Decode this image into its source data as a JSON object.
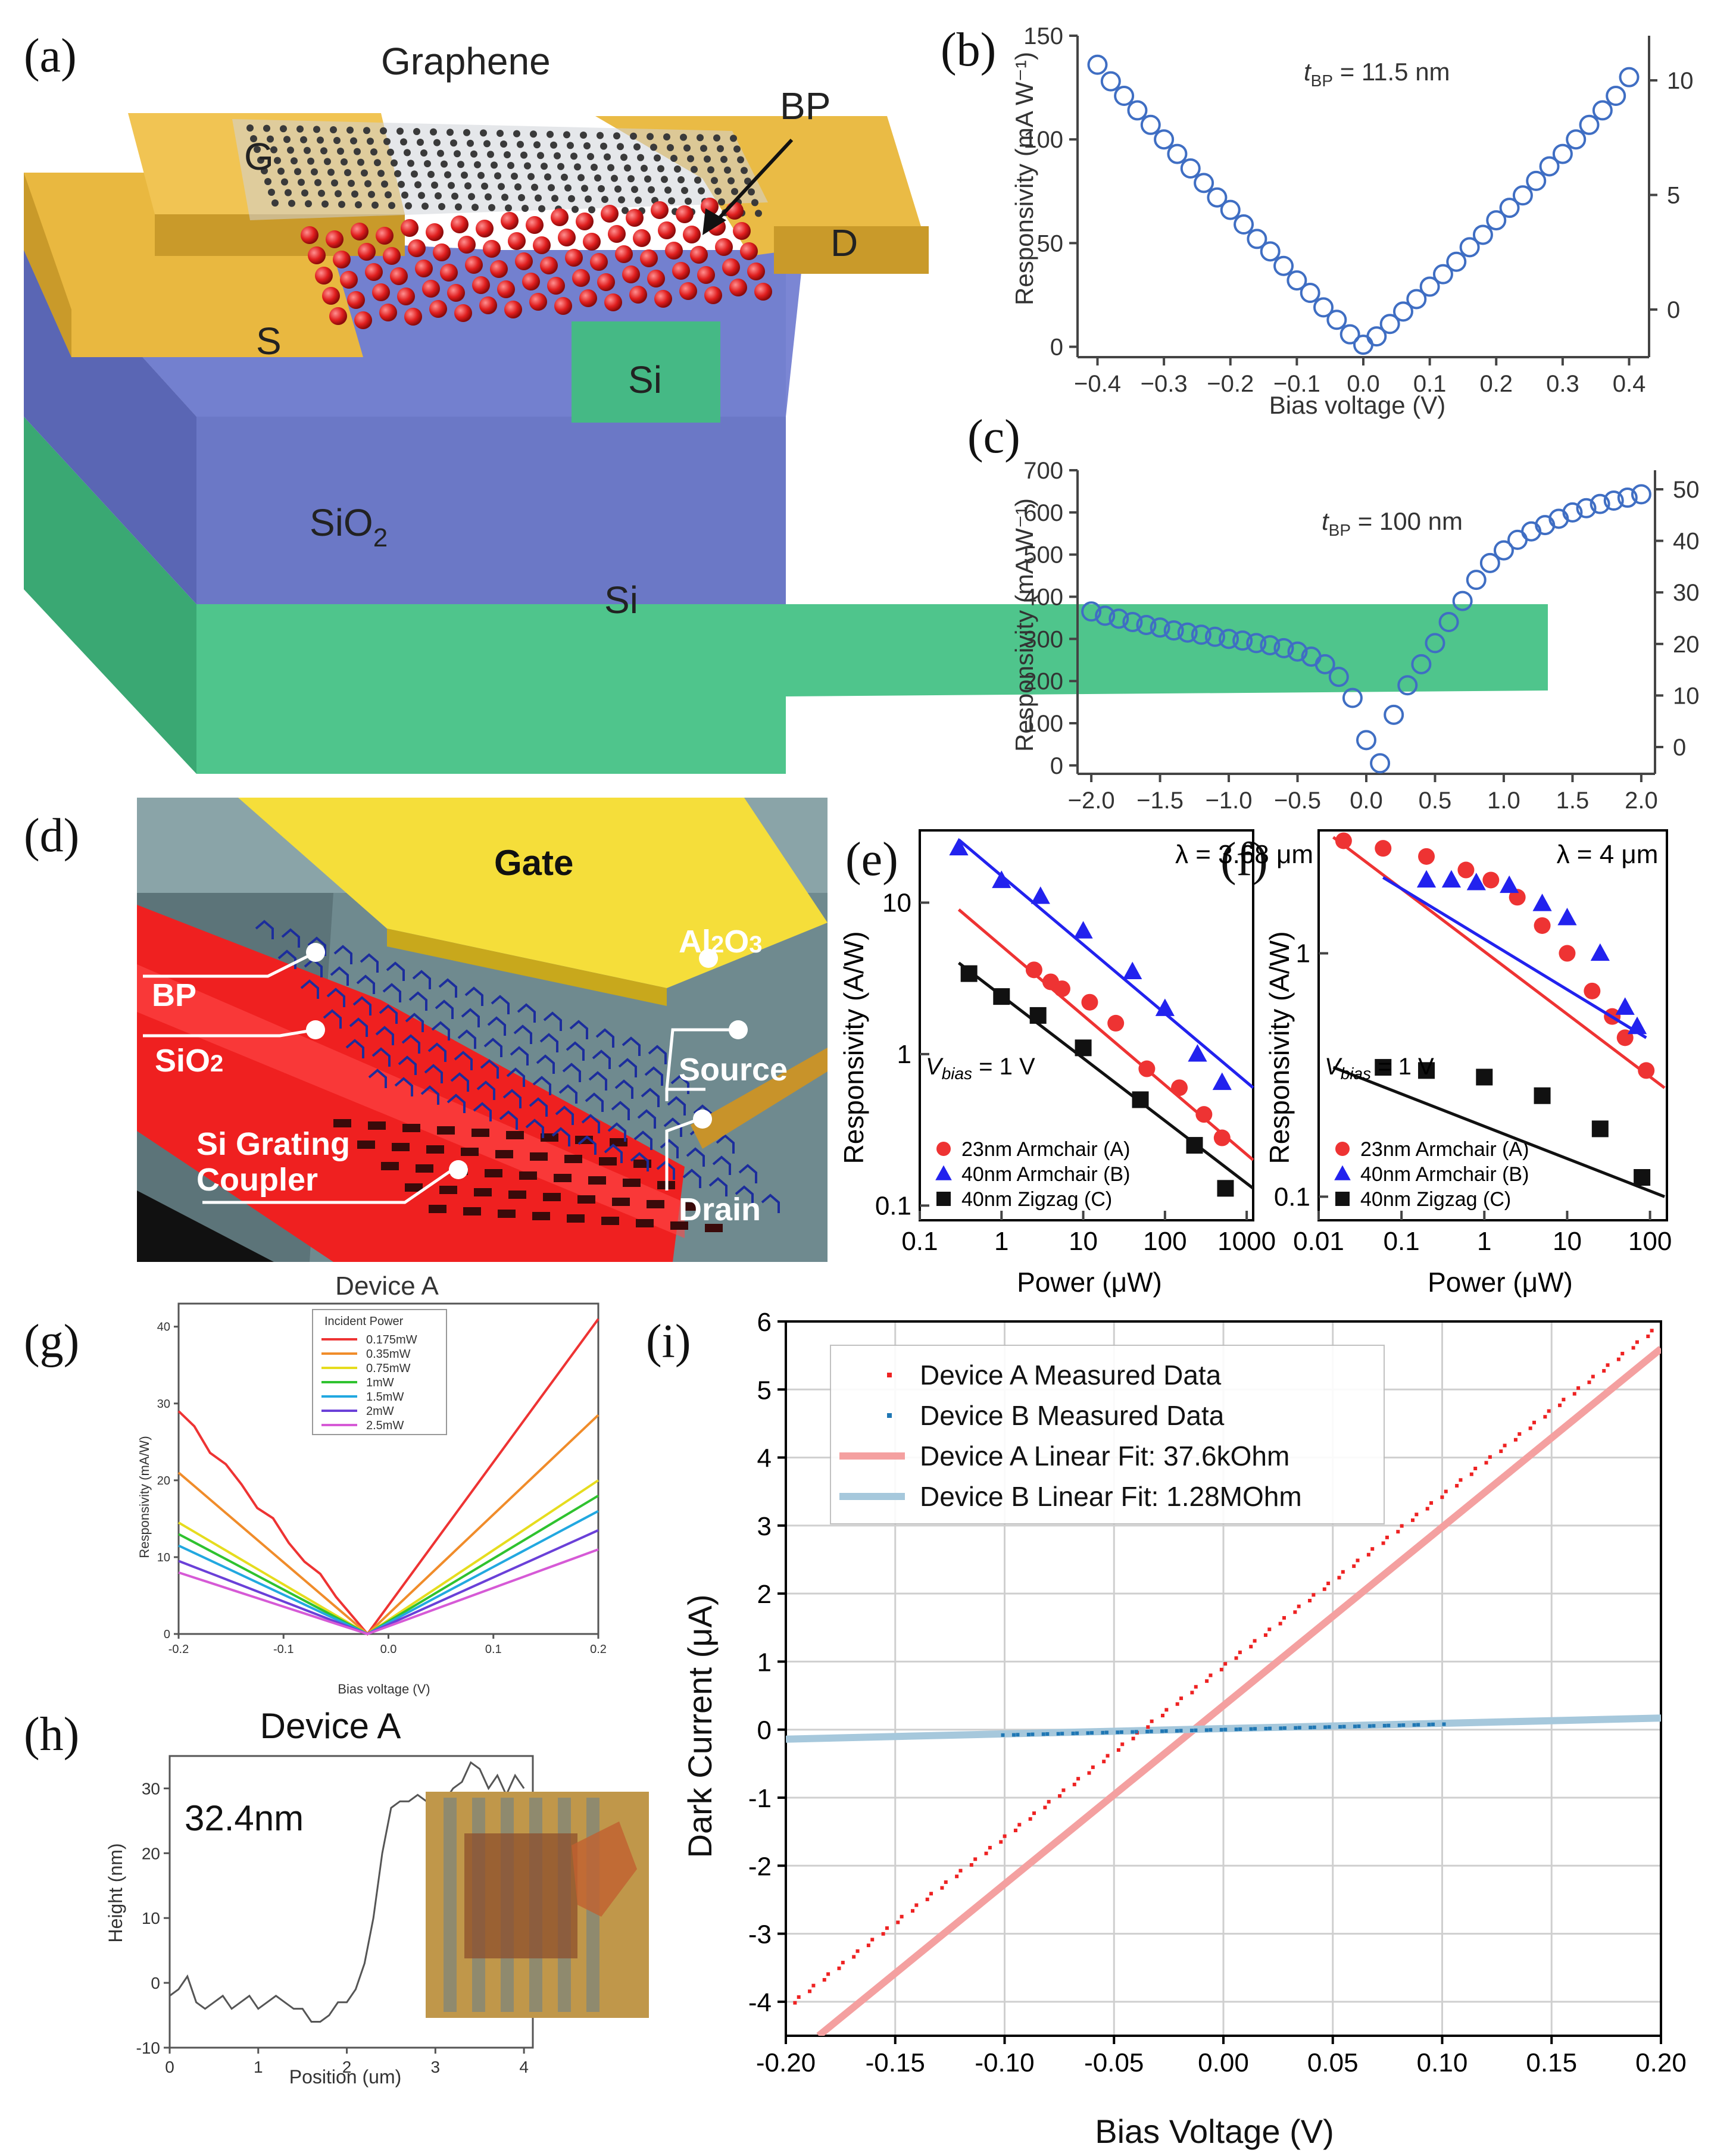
{
  "panel_labels": [
    "(a)",
    "(b)",
    "(c)",
    "(d)",
    "(e)",
    "(f)",
    "(g)",
    "(h)",
    "(i)"
  ],
  "diagram_a": {
    "graphene": "Graphene",
    "bp": "BP",
    "gate": "G",
    "source": "S",
    "drain": "D",
    "si_wg": "Si",
    "sio2": "SiO",
    "sio2_sub": "2",
    "si_sub": "Si"
  },
  "diagram_d": {
    "gate": "Gate",
    "al2o3": "Al",
    "al2o3_2": "2",
    "al2o3_o": "O",
    "al2o3_3": "3",
    "bp": "BP",
    "sio2": "SiO",
    "sio2_sub": "2",
    "source": "Source",
    "grating1": "Si Grating",
    "grating2": "Coupler",
    "drain": "Drain"
  },
  "colors": {
    "gold": "#e9b840",
    "blue_oxide": "#6b78c6",
    "green_si": "#4fc58c",
    "bp_red": "#e01e1e",
    "series_red": "#ee3333",
    "series_blue": "#2222ee",
    "series_black": "#111111",
    "circle_blue": "#3f6ec3"
  },
  "chart_data": [
    {
      "id": "b",
      "type": "scatter",
      "annotation": "t",
      "annotation_sub": "BP",
      "annotation_val": " = 11.5 nm",
      "xlabel": "Bias voltage (V)",
      "ylabel": "Responsivity (mA W⁻¹)",
      "xlim": [
        -0.43,
        0.43
      ],
      "ylim": [
        -5,
        150
      ],
      "xticks": [
        "−0.4",
        "−0.3",
        "−0.2",
        "−0.1",
        "0.0",
        "0.1",
        "0.2",
        "0.3",
        "0.4"
      ],
      "yticks": [
        "0",
        "50",
        "100",
        "150"
      ],
      "y2ticks": [
        "0",
        "5",
        "10"
      ],
      "x": [
        -0.4,
        -0.38,
        -0.36,
        -0.34,
        -0.32,
        -0.3,
        -0.28,
        -0.26,
        -0.24,
        -0.22,
        -0.2,
        -0.18,
        -0.16,
        -0.14,
        -0.12,
        -0.1,
        -0.08,
        -0.06,
        -0.04,
        -0.02,
        0.0,
        0.02,
        0.04,
        0.06,
        0.08,
        0.1,
        0.12,
        0.14,
        0.16,
        0.18,
        0.2,
        0.22,
        0.24,
        0.26,
        0.28,
        0.3,
        0.32,
        0.34,
        0.36,
        0.38,
        0.4
      ],
      "y": [
        136,
        128,
        121,
        114,
        107,
        100,
        93,
        86,
        79,
        72,
        66,
        59,
        52,
        46,
        39,
        32,
        26,
        19,
        13,
        6,
        1,
        5,
        11,
        17,
        23,
        29,
        35,
        41,
        48,
        54,
        61,
        67,
        73,
        80,
        87,
        93,
        100,
        107,
        114,
        121,
        130
      ]
    },
    {
      "id": "c",
      "type": "scatter",
      "annotation": "t",
      "annotation_sub": "BP",
      "annotation_val": " = 100 nm",
      "xlabel": "",
      "ylabel": "Responsivity (mA W⁻¹)",
      "xlim": [
        -2.1,
        2.1
      ],
      "ylim": [
        -20,
        700
      ],
      "xticks": [
        "−2.0",
        "−1.5",
        "−1.0",
        "−0.5",
        "0.0",
        "0.5",
        "1.0",
        "1.5",
        "2.0"
      ],
      "yticks": [
        "0",
        "100",
        "200",
        "300",
        "400",
        "500",
        "600",
        "700"
      ],
      "y2ticks": [
        "0",
        "10",
        "20",
        "30",
        "40",
        "50"
      ],
      "x": [
        -2.0,
        -1.9,
        -1.8,
        -1.7,
        -1.6,
        -1.5,
        -1.4,
        -1.3,
        -1.2,
        -1.1,
        -1.0,
        -0.9,
        -0.8,
        -0.7,
        -0.6,
        -0.5,
        -0.4,
        -0.3,
        -0.2,
        -0.1,
        0.0,
        0.1,
        0.2,
        0.3,
        0.4,
        0.5,
        0.6,
        0.7,
        0.8,
        0.9,
        1.0,
        1.1,
        1.2,
        1.3,
        1.4,
        1.5,
        1.6,
        1.7,
        1.8,
        1.9,
        2.0
      ],
      "y": [
        365,
        355,
        348,
        340,
        333,
        327,
        320,
        315,
        310,
        305,
        300,
        296,
        290,
        285,
        278,
        270,
        258,
        240,
        210,
        160,
        60,
        5,
        120,
        190,
        240,
        290,
        340,
        390,
        440,
        480,
        510,
        535,
        555,
        570,
        585,
        600,
        610,
        620,
        628,
        635,
        643
      ]
    },
    {
      "id": "e",
      "type": "scatter",
      "title": "λ = 3.68 μm",
      "xlabel": "Power (μW)",
      "ylabel": "Responsivity (A/W)",
      "xscale": "log",
      "yscale": "log",
      "xlim": [
        0.1,
        1200
      ],
      "ylim": [
        0.08,
        30
      ],
      "xticks": [
        "0.1",
        "1",
        "10",
        "100",
        "1000"
      ],
      "yticks": [
        "0.1",
        "1",
        "10"
      ],
      "bias_label": "V",
      "bias_sub": "bias",
      "bias_val": " = 1 V",
      "series": [
        {
          "name": "23nm Armchair (A)",
          "color": "#ee3333",
          "marker": "circle",
          "x": [
            2.5,
            4,
            5.5,
            12,
            25,
            60,
            150,
            300,
            500
          ],
          "y": [
            3.6,
            3.0,
            2.7,
            2.2,
            1.6,
            0.8,
            0.6,
            0.4,
            0.28
          ],
          "fit_x": [
            0.3,
            1200
          ],
          "fit_y": [
            9.0,
            0.2
          ]
        },
        {
          "name": "40nm Armchair (B)",
          "color": "#2222ee",
          "marker": "triangle",
          "x": [
            0.3,
            1,
            3,
            10,
            40,
            100,
            250,
            500
          ],
          "y": [
            23,
            14,
            11,
            6.5,
            3.5,
            2.0,
            1.0,
            0.65
          ],
          "fit_x": [
            0.3,
            1200
          ],
          "fit_y": [
            26,
            0.6
          ]
        },
        {
          "name": "40nm Zigzag (C)",
          "color": "#111111",
          "marker": "square",
          "x": [
            0.4,
            1,
            2.8,
            10,
            50,
            230,
            550
          ],
          "y": [
            3.4,
            2.4,
            1.8,
            1.1,
            0.5,
            0.25,
            0.13
          ],
          "fit_x": [
            0.3,
            1200
          ],
          "fit_y": [
            4.0,
            0.13
          ]
        }
      ]
    },
    {
      "id": "f",
      "type": "scatter",
      "title": "λ = 4 μm",
      "xlabel": "Power (μW)",
      "ylabel": "Responsivity (A/W)",
      "xscale": "log",
      "yscale": "log",
      "xlim": [
        0.01,
        160
      ],
      "ylim": [
        0.08,
        3.2
      ],
      "xticks": [
        "0.01",
        "0.1",
        "1",
        "10",
        "100"
      ],
      "yticks": [
        "0.1",
        "1"
      ],
      "bias_label": "V",
      "bias_sub": "bias",
      "bias_val": " = 1 V",
      "series": [
        {
          "name": "23nm Armchair (A)",
          "color": "#ee3333",
          "marker": "circle",
          "x": [
            0.02,
            0.06,
            0.2,
            0.6,
            1.2,
            2.5,
            5,
            10,
            20,
            35,
            50,
            90
          ],
          "y": [
            2.9,
            2.7,
            2.5,
            2.2,
            2.0,
            1.7,
            1.3,
            1.0,
            0.7,
            0.55,
            0.45,
            0.33
          ],
          "fit_x": [
            0.015,
            150
          ],
          "fit_y": [
            3.0,
            0.28
          ]
        },
        {
          "name": "40nm Armchair (B)",
          "color": "#2222ee",
          "marker": "triangle",
          "x": [
            0.2,
            0.4,
            0.8,
            2,
            5,
            10,
            25,
            50,
            70
          ],
          "y": [
            2.0,
            2.0,
            1.95,
            1.9,
            1.6,
            1.4,
            1.0,
            0.6,
            0.5
          ],
          "fit_x": [
            0.06,
            90
          ],
          "fit_y": [
            2.05,
            0.45
          ]
        },
        {
          "name": "40nm Zigzag (C)",
          "color": "#111111",
          "marker": "square",
          "x": [
            0.06,
            0.2,
            1,
            5,
            25,
            80
          ],
          "y": [
            0.34,
            0.33,
            0.31,
            0.26,
            0.19,
            0.12
          ],
          "fit_x": [
            0.015,
            150
          ],
          "fit_y": [
            0.34,
            0.1
          ]
        }
      ]
    },
    {
      "id": "g",
      "type": "line",
      "title": "Device A",
      "xlabel": "Bias voltage (V)",
      "ylabel": "Responsivity (mA/W)",
      "xlim": [
        -0.2,
        0.2
      ],
      "ylim": [
        0,
        43
      ],
      "xticks": [
        "-0.2",
        "-0.1",
        "0.0",
        "0.1",
        "0.2"
      ],
      "yticks": [
        "0",
        "10",
        "20",
        "30",
        "40"
      ],
      "legend_title": "Incident Power",
      "vertex_x": -0.02,
      "series": [
        {
          "name": "0.175mW",
          "color": "#ee3333",
          "left": 29,
          "right": 41
        },
        {
          "name": "0.35mW",
          "color": "#f08c2a",
          "left": 21,
          "right": 28.5
        },
        {
          "name": "0.75mW",
          "color": "#e6dc1e",
          "left": 14.5,
          "right": 20
        },
        {
          "name": "1mW",
          "color": "#2fc22f",
          "left": 13,
          "right": 18
        },
        {
          "name": "1.5mW",
          "color": "#22a8e0",
          "left": 11.5,
          "right": 16
        },
        {
          "name": "2mW",
          "color": "#6a40d8",
          "left": 9.5,
          "right": 13.5
        },
        {
          "name": "2.5mW",
          "color": "#d65ad6",
          "left": 8,
          "right": 11
        }
      ]
    },
    {
      "id": "h",
      "type": "line",
      "title": "Device A",
      "annotation": "32.4nm",
      "xlabel": "Position (um)",
      "ylabel": "Height (nm)",
      "xlim": [
        0,
        4.1
      ],
      "ylim": [
        -10,
        35
      ],
      "xticks": [
        "0",
        "1",
        "2",
        "3",
        "4"
      ],
      "yticks": [
        "-10",
        "0",
        "10",
        "20",
        "30"
      ],
      "x": [
        0.0,
        0.1,
        0.2,
        0.3,
        0.4,
        0.5,
        0.6,
        0.7,
        0.8,
        0.9,
        1.0,
        1.1,
        1.2,
        1.3,
        1.4,
        1.5,
        1.6,
        1.7,
        1.8,
        1.9,
        2.0,
        2.1,
        2.2,
        2.3,
        2.4,
        2.5,
        2.6,
        2.7,
        2.8,
        2.9,
        3.0,
        3.1,
        3.2,
        3.3,
        3.4,
        3.5,
        3.6,
        3.7,
        3.8,
        3.9,
        4.0
      ],
      "y": [
        -2,
        -1,
        1,
        -3,
        -4,
        -3,
        -2,
        -4,
        -3,
        -2,
        -4,
        -3,
        -2,
        -3,
        -4,
        -4,
        -6,
        -6,
        -5,
        -3,
        -3,
        -1,
        3,
        10,
        20,
        27,
        28,
        28,
        29,
        28,
        29,
        28,
        30,
        31,
        34,
        33,
        30,
        32,
        29,
        32,
        30
      ]
    },
    {
      "id": "i",
      "type": "scatter",
      "xlabel": "Bias Voltage (V)",
      "ylabel": "Dark Current (μA)",
      "xlim": [
        -0.2,
        0.2
      ],
      "ylim": [
        -4.5,
        6
      ],
      "xticks": [
        "-0.20",
        "-0.15",
        "-0.10",
        "-0.05",
        "0.00",
        "0.05",
        "0.10",
        "0.15",
        "0.20"
      ],
      "yticks": [
        "-4",
        "-3",
        "-2",
        "-1",
        "0",
        "1",
        "2",
        "3",
        "4",
        "5",
        "6"
      ],
      "series": [
        {
          "name": "Device A Measured Data",
          "color": "#ee2222",
          "kind": "points",
          "x0": -0.2,
          "x1": 0.2,
          "y0": -4.1,
          "y1": 5.95,
          "n": 120
        },
        {
          "name": "Device B Measured Data",
          "color": "#1f77b4",
          "kind": "points",
          "x0": -0.1,
          "x1": 0.1,
          "y0": -0.08,
          "y1": 0.08,
          "n": 60
        },
        {
          "name": "Device A Linear Fit: 37.6kOhm",
          "color": "#f4a0a0",
          "kind": "line",
          "x": [
            -0.185,
            0.2
          ],
          "y": [
            -4.5,
            5.6
          ]
        },
        {
          "name": "Device B Linear Fit: 1.28MOhm",
          "color": "#a6c8dc",
          "kind": "line",
          "x": [
            -0.2,
            0.2
          ],
          "y": [
            -0.14,
            0.17
          ]
        }
      ]
    }
  ]
}
